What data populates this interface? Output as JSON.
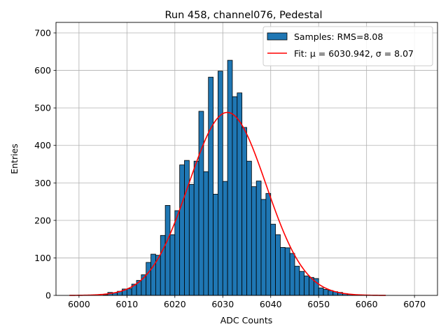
{
  "chart_data": {
    "type": "bar",
    "title": "Run 458, channel076, Pedestal",
    "xlabel": "ADC Counts",
    "ylabel": "Entries",
    "xlim": [
      5995.2,
      6074.8
    ],
    "ylim": [
      0,
      728
    ],
    "xticks": [
      6000,
      6010,
      6020,
      6030,
      6040,
      6050,
      6060,
      6070
    ],
    "yticks": [
      0,
      100,
      200,
      300,
      400,
      500,
      600,
      700
    ],
    "grid": true,
    "legend_position": "top-right",
    "series": [
      {
        "name": "Samples: RMS=8.08",
        "kind": "histogram",
        "color": "#1f77b4",
        "edgecolor": "#000000",
        "bin_width": 1,
        "x": [
          6005,
          6006,
          6007,
          6008,
          6009,
          6010,
          6011,
          6012,
          6013,
          6014,
          6015,
          6016,
          6017,
          6018,
          6019,
          6020,
          6021,
          6022,
          6023,
          6024,
          6025,
          6026,
          6027,
          6028,
          6029,
          6030,
          6031,
          6032,
          6033,
          6034,
          6035,
          6036,
          6037,
          6038,
          6039,
          6040,
          6041,
          6042,
          6043,
          6044,
          6045,
          6046,
          6047,
          6048,
          6049,
          6050,
          6051,
          6052,
          6053,
          6054,
          6055,
          6056,
          6057,
          6058
        ],
        "values": [
          2,
          8,
          7,
          11,
          17,
          18,
          30,
          40,
          55,
          88,
          110,
          107,
          160,
          240,
          162,
          226,
          348,
          360,
          296,
          358,
          491,
          330,
          582,
          270,
          598,
          304,
          627,
          530,
          540,
          448,
          358,
          290,
          305,
          256,
          272,
          190,
          162,
          128,
          127,
          112,
          78,
          64,
          52,
          48,
          45,
          20,
          16,
          13,
          10,
          8,
          5,
          3,
          2,
          1
        ]
      },
      {
        "name": "Fit: μ = 6030.942, σ = 8.07",
        "kind": "gaussian",
        "color": "#ff0000",
        "mu": 6030.942,
        "sigma": 8.07,
        "amplitude": 488,
        "x_range": [
          5998,
          6064
        ]
      }
    ]
  }
}
